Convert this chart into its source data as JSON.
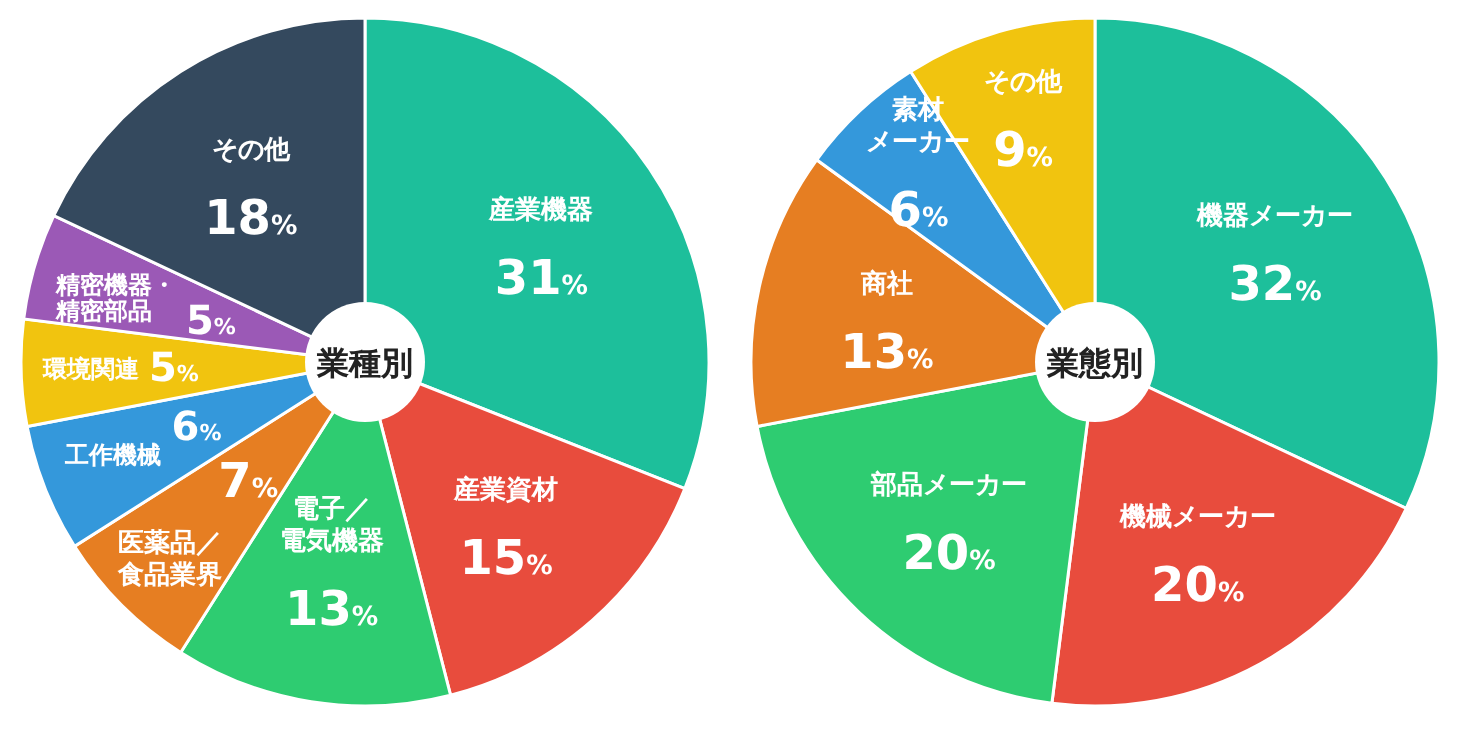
{
  "chart_data": [
    {
      "type": "pie",
      "title": "業種別",
      "categories": [
        "産業機器",
        "産業資材",
        "電子／電気機器",
        "医薬品／食品業界",
        "工作機械",
        "環境関連",
        "精密機器・精密部品",
        "その他"
      ],
      "values": [
        31,
        15,
        13,
        7,
        6,
        5,
        5,
        18
      ],
      "value_labels": [
        "31%",
        "15%",
        "13%",
        "7%",
        "6%",
        "5%",
        "5%",
        "18%"
      ],
      "colors": [
        "#1dbf9b",
        "#e84c3d",
        "#2ecc71",
        "#e67e22",
        "#3498db",
        "#f1c40f",
        "#9b59b6",
        "#34495e"
      ]
    },
    {
      "type": "pie",
      "title": "業態別",
      "categories": [
        "機器メーカー",
        "機械メーカー",
        "部品メーカー",
        "商社",
        "素材メーカー",
        "その他"
      ],
      "values": [
        32,
        20,
        20,
        13,
        6,
        9
      ],
      "value_labels": [
        "32%",
        "20%",
        "20%",
        "13%",
        "6%",
        "9%"
      ],
      "colors": [
        "#1dbf9b",
        "#e84c3d",
        "#2ecc71",
        "#e67e22",
        "#3498db",
        "#f1c40f"
      ]
    }
  ]
}
